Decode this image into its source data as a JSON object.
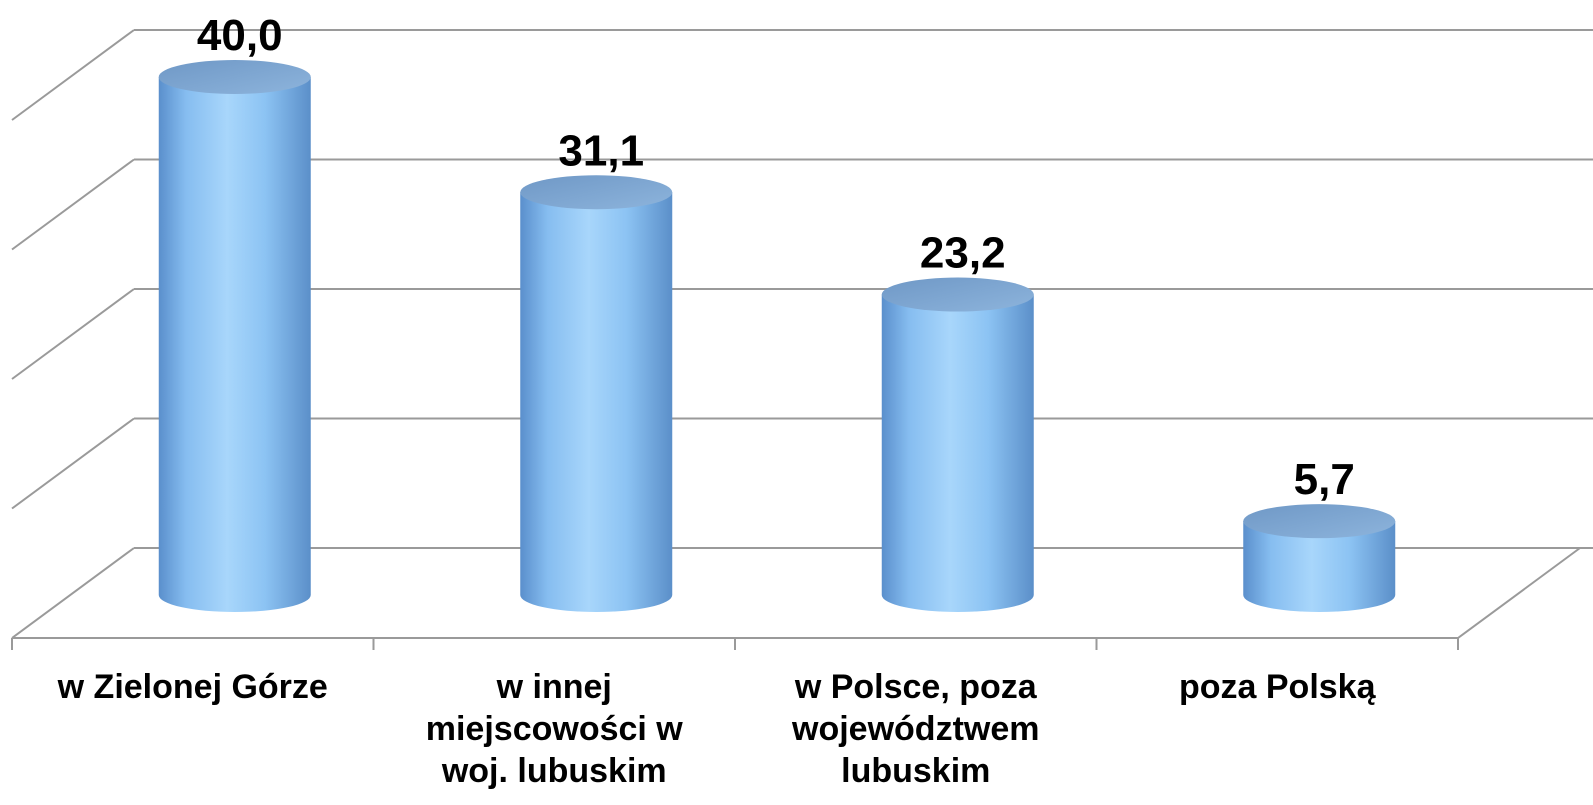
{
  "chart_data": {
    "type": "bar",
    "style": "3d-cylinder",
    "categories": [
      "w Zielonej Górze",
      "w innej miejscowości w woj. lubuskim",
      "w Polsce, poza województwem lubuskim",
      "poza Polską"
    ],
    "values": [
      40.0,
      31.1,
      23.2,
      5.7
    ],
    "value_labels": [
      "40,0",
      "31,1",
      "23,2",
      "5,7"
    ],
    "ylim": [
      0,
      50
    ],
    "gridlines": [
      0,
      10,
      20,
      30,
      40,
      50
    ],
    "grid": true,
    "legend": "none",
    "colors": {
      "bar_light": "#9fd0f7",
      "bar_dark": "#5a8fcc",
      "bar_top": "#7aa3cf",
      "grid": "#9a9a9a"
    }
  }
}
